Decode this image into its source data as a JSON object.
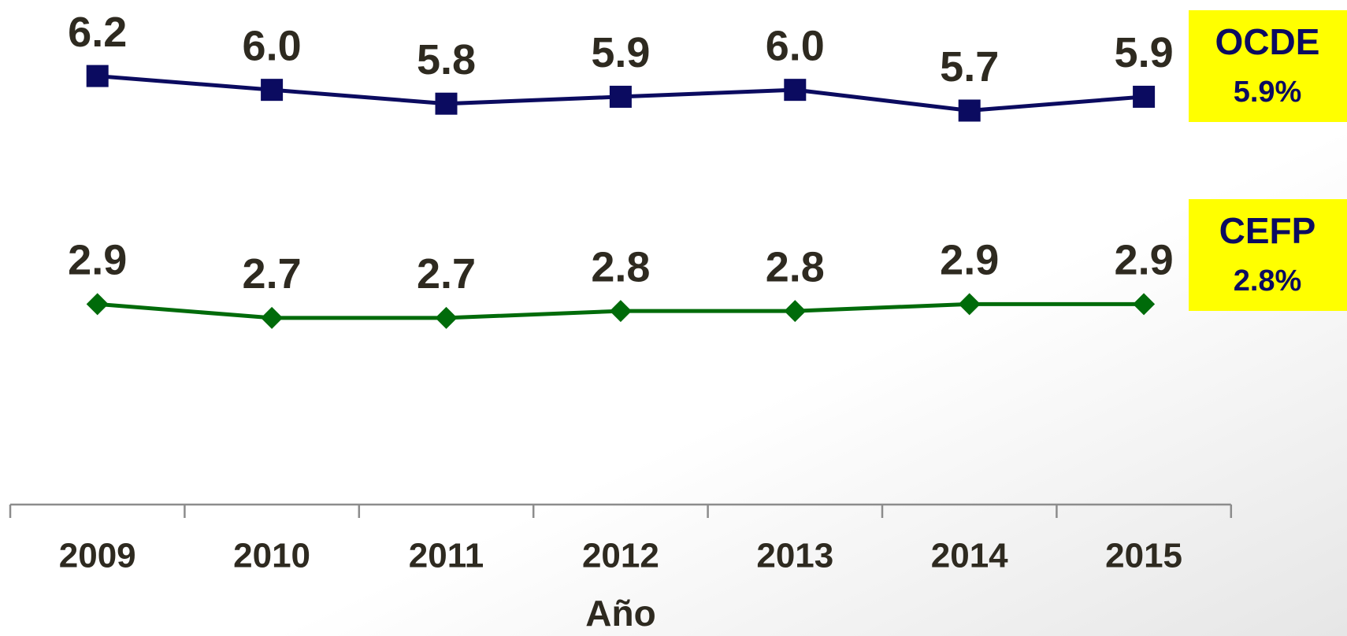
{
  "chart_data": {
    "type": "line",
    "x_label": "Año",
    "categories": [
      "2009",
      "2010",
      "2011",
      "2012",
      "2013",
      "2014",
      "2015"
    ],
    "ylim": [
      0,
      7.3
    ],
    "series": [
      {
        "name": "OCDE",
        "color": "#0b0b60",
        "marker": "square",
        "average_label": "5.9%",
        "values": [
          6.2,
          6.0,
          5.8,
          5.9,
          6.0,
          5.7,
          5.9
        ],
        "value_labels": [
          "6.2",
          "6.0",
          "5.8",
          "5.9",
          "6.0",
          "5.7",
          "5.9"
        ]
      },
      {
        "name": "CEFP",
        "color": "#006b0a",
        "marker": "diamond",
        "average_label": "2.8%",
        "values": [
          2.9,
          2.7,
          2.7,
          2.8,
          2.8,
          2.9,
          2.9
        ],
        "value_labels": [
          "2.9",
          "2.7",
          "2.7",
          "2.8",
          "2.8",
          "2.9",
          "2.9"
        ]
      }
    ]
  }
}
